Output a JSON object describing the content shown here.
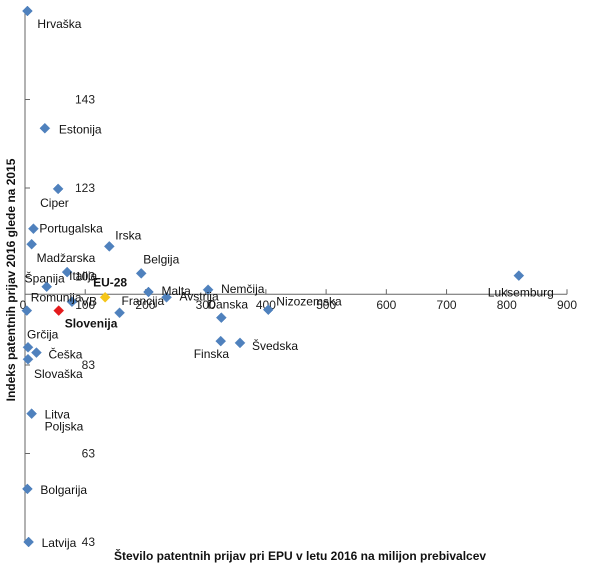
{
  "chart_data": {
    "type": "scatter",
    "xlabel": "Število patentnih prijav pri EPU v letu 2016 na milijon prebivalcev",
    "ylabel": "Indeks patentnih prijav 2016 glede na 2015",
    "xlim": [
      0,
      900
    ],
    "ylim": [
      43,
      163
    ],
    "x_axis_crosses_y_at": 99,
    "grid": false,
    "legend": "none",
    "x_ticks": [
      "0",
      "100",
      "200",
      "300",
      "400",
      "500",
      "600",
      "700",
      "800",
      "900"
    ],
    "y_ticks": [
      "43",
      "63",
      "83",
      "103",
      "123",
      "143"
    ],
    "colors": {
      "default": "#4f81bd",
      "eu28": "#f5c518",
      "slovenia": "#e41a1c",
      "axis": "#666666"
    },
    "points": [
      {
        "label": "Hrvaška",
        "x": 4,
        "y": 163
      },
      {
        "label": "Estonija",
        "x": 33,
        "y": 136.5
      },
      {
        "label": "Ciper",
        "x": 55,
        "y": 122.8
      },
      {
        "label": "Portugalska",
        "x": 14,
        "y": 113.8
      },
      {
        "label": "Madžarska",
        "x": 11,
        "y": 110.3
      },
      {
        "label": "Irska",
        "x": 140,
        "y": 109.8
      },
      {
        "label": "Belgija",
        "x": 193,
        "y": 103.7
      },
      {
        "label": "Luksemburg",
        "x": 820,
        "y": 103.2
      },
      {
        "label": "Španija",
        "x": 36,
        "y": 100.7
      },
      {
        "label": "Italija",
        "x": 70,
        "y": 104
      },
      {
        "label": "Nemčija",
        "x": 304,
        "y": 100
      },
      {
        "label": "Malta",
        "x": 205,
        "y": 99.5
      },
      {
        "label": "EU-28",
        "x": 133,
        "y": 98.3,
        "kind": "eu28"
      },
      {
        "label": "Avstrija",
        "x": 235,
        "y": 98.3
      },
      {
        "label": "Romunija",
        "x": 3,
        "y": 95.3
      },
      {
        "label": "VB",
        "x": 78,
        "y": 97.3
      },
      {
        "label": "Slovenija",
        "x": 56,
        "y": 95.3,
        "kind": "slovenia"
      },
      {
        "label": "Francija",
        "x": 157,
        "y": 94.8
      },
      {
        "label": "Danska",
        "x": 326,
        "y": 93.7
      },
      {
        "label": "Nizozemska",
        "x": 404,
        "y": 95.5
      },
      {
        "label": "Finska",
        "x": 325,
        "y": 88.4
      },
      {
        "label": "Švedska",
        "x": 357,
        "y": 88
      },
      {
        "label": "Grčija",
        "x": 5,
        "y": 87
      },
      {
        "label": "Češka",
        "x": 19,
        "y": 85.8
      },
      {
        "label": "Slovaška",
        "x": 5,
        "y": 84.3
      },
      {
        "label": "Litva",
        "x": 11,
        "y": 72
      },
      {
        "label": "Poljska",
        "x": 11,
        "y": 72
      },
      {
        "label": "Bolgarija",
        "x": 4,
        "y": 55
      },
      {
        "label": "Latvija",
        "x": 6,
        "y": 43
      }
    ]
  }
}
